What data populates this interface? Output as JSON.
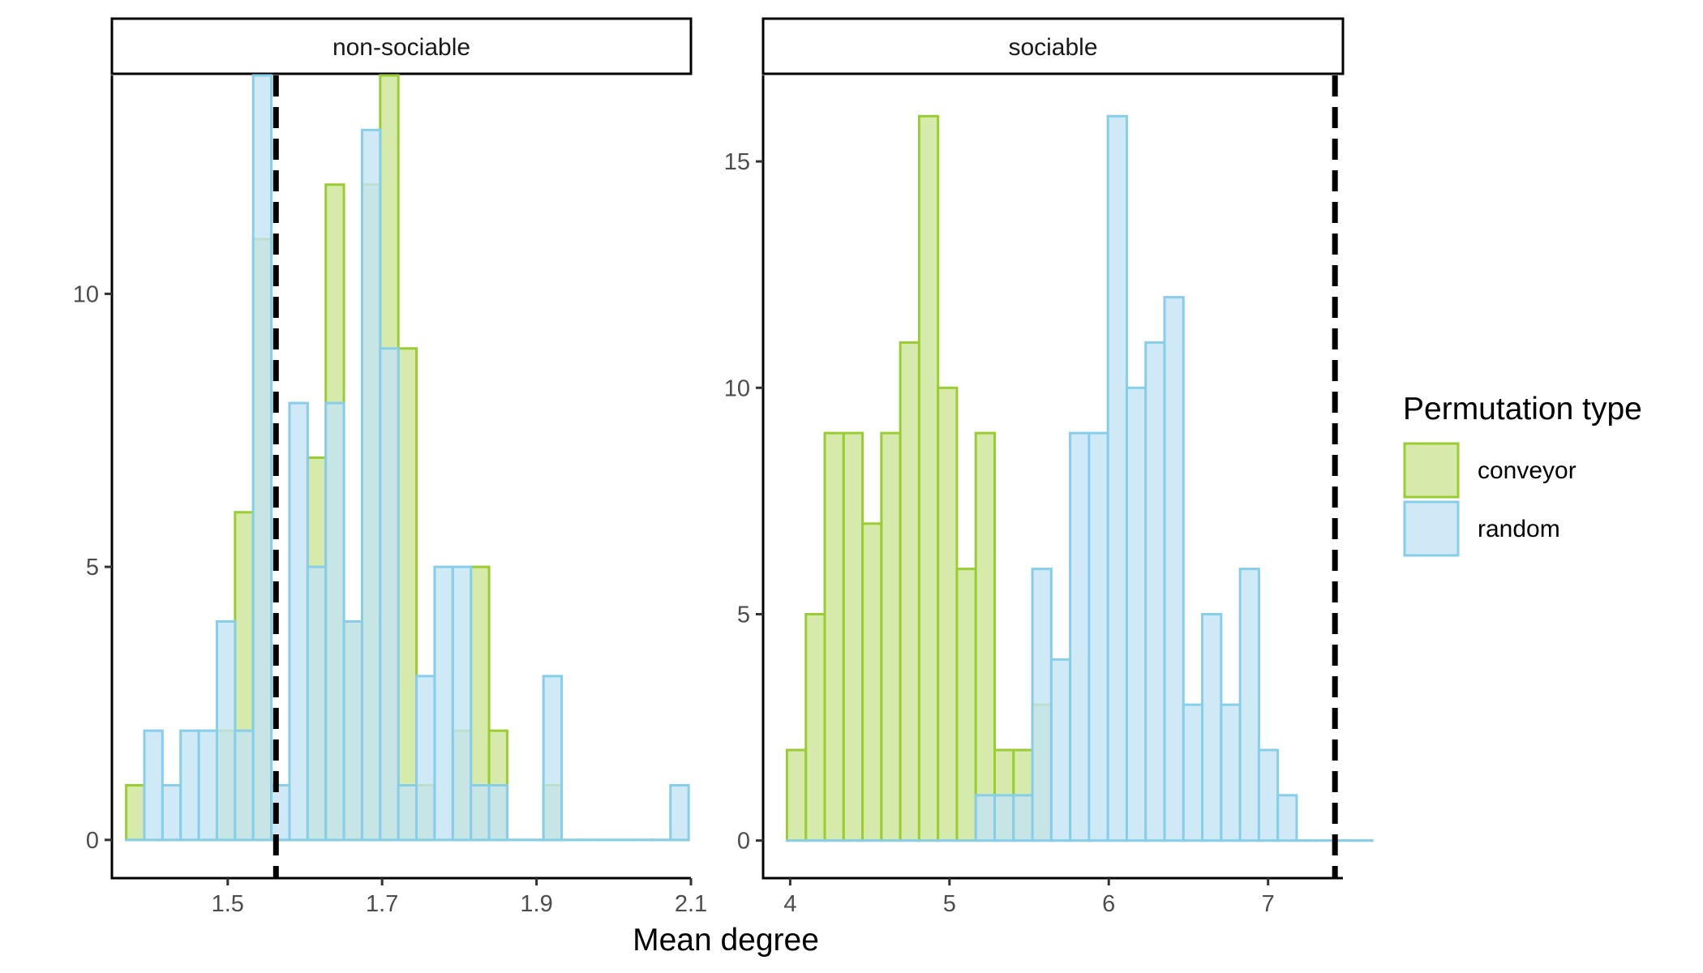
{
  "chart_data": {
    "type": "bar",
    "subtype": "histogram-faceted",
    "xlabel": "Mean degree",
    "ylabel": "",
    "legend": {
      "title": "Permutation type",
      "placement": "right",
      "entries": [
        {
          "name": "conveyor",
          "fill": "#cce597",
          "stroke": "#9acd32"
        },
        {
          "name": "random",
          "fill": "#c4e4f4",
          "stroke": "#87ceeb"
        }
      ]
    },
    "panels": [
      {
        "strip": "non-sociable",
        "xlim": [
          1.35,
          2.1
        ],
        "ylim": [
          -0.7,
          14.0
        ],
        "xticks": [
          1.5,
          1.7,
          1.9,
          2.1
        ],
        "xtick_labels": [
          "1.5",
          "1.7",
          "1.9",
          "2.1"
        ],
        "yticks": [
          0,
          5,
          10
        ],
        "ytick_labels": [
          "0",
          "5",
          "10"
        ],
        "reference_line": 1.5625,
        "bin_start": 1.3685,
        "bin_width": 0.0235,
        "series": [
          {
            "name": "conveyor",
            "counts": [
              1,
              0,
              0,
              0,
              0,
              2,
              6,
              11,
              0,
              0,
              7,
              12,
              4,
              12,
              14,
              9,
              1,
              0,
              2,
              5,
              2,
              0,
              0,
              1,
              0,
              0,
              0,
              0,
              0,
              0,
              0
            ]
          },
          {
            "name": "random",
            "counts": [
              0,
              2,
              1,
              2,
              2,
              4,
              2,
              14,
              1,
              8,
              5,
              8,
              4,
              13,
              9,
              1,
              3,
              5,
              5,
              1,
              1,
              0,
              0,
              3,
              0,
              0,
              0,
              0,
              0,
              0,
              1
            ]
          }
        ]
      },
      {
        "strip": "sociable",
        "xlim": [
          3.83,
          7.47
        ],
        "ylim": [
          -0.83,
          16.9
        ],
        "xticks": [
          4,
          5,
          6,
          7
        ],
        "xtick_labels": [
          "4",
          "5",
          "6",
          "7"
        ],
        "yticks": [
          0,
          5,
          10,
          15
        ],
        "ytick_labels": [
          "0",
          "5",
          "10",
          "15"
        ],
        "reference_line": 7.42,
        "bin_start": 3.98,
        "bin_width": 0.1185,
        "series": [
          {
            "name": "conveyor",
            "counts": [
              2,
              5,
              9,
              9,
              7,
              9,
              11,
              16,
              10,
              6,
              9,
              2,
              2,
              3,
              0,
              0,
              0,
              0,
              0,
              0,
              0,
              0,
              0,
              0,
              0,
              0,
              0,
              0,
              0,
              0,
              0
            ]
          },
          {
            "name": "random",
            "counts": [
              0,
              0,
              0,
              0,
              0,
              0,
              0,
              0,
              0,
              0,
              1,
              1,
              1,
              6,
              4,
              9,
              9,
              16,
              10,
              11,
              12,
              3,
              5,
              3,
              6,
              2,
              1,
              0,
              0,
              0,
              0
            ]
          }
        ]
      }
    ]
  }
}
